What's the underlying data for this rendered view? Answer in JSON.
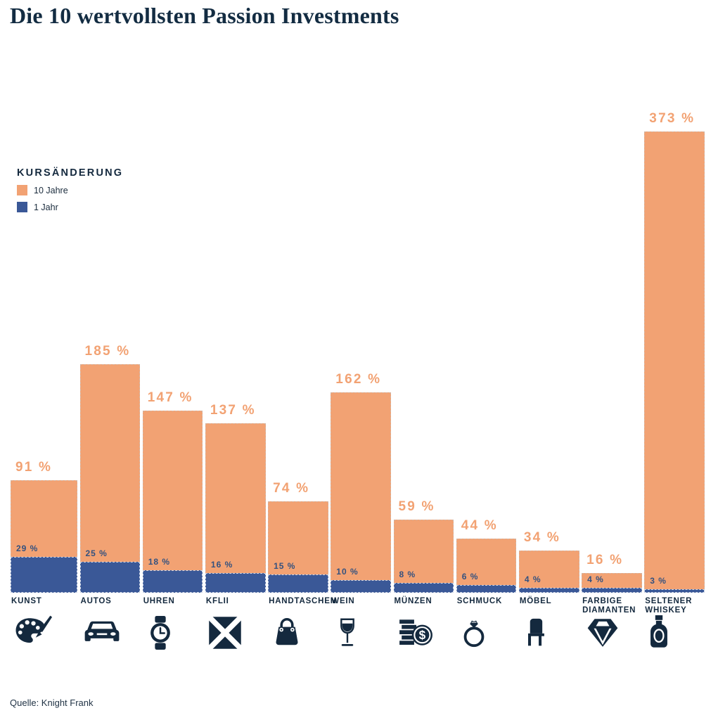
{
  "title": "Die 10 wertvollsten Passion Investments",
  "source": "Quelle: Knight Frank",
  "legend": {
    "heading": "KURSÄNDERUNG",
    "items": [
      {
        "label": "10 Jahre",
        "color": "#F2A273"
      },
      {
        "label": "1 Jahr",
        "color": "#3A5897"
      }
    ]
  },
  "chart_data": {
    "type": "bar",
    "title": "Die 10 wertvollsten Passion Investments",
    "categories": [
      "KUNST",
      "AUTOS",
      "UHREN",
      "KFLII",
      "HANDTASCHEN",
      "WEIN",
      "MÜNZEN",
      "SCHMUCK",
      "MÖBEL",
      "FARBIGE DIAMANTEN",
      "SELTENER WHISKEY"
    ],
    "series": [
      {
        "name": "10 Jahre",
        "color": "#F2A273",
        "values": [
          91,
          185,
          147,
          137,
          74,
          162,
          59,
          44,
          34,
          16,
          373
        ]
      },
      {
        "name": "1 Jahr",
        "color": "#3A5897",
        "values": [
          29,
          25,
          18,
          16,
          15,
          10,
          8,
          6,
          4,
          4,
          3
        ]
      }
    ],
    "value_suffix": " %",
    "ylim": [
      0,
      373
    ],
    "grid": false,
    "legend_position": "upper-left",
    "icons": [
      "palette",
      "car",
      "watch",
      "kflii-logo",
      "handbag",
      "wine-glass",
      "coins",
      "ring",
      "chair",
      "diamond",
      "whiskey-bottle"
    ]
  },
  "colors": {
    "navy": "#14293E",
    "orange": "#F2A273",
    "blue": "#3A5897",
    "blue_value_label": "#33517F",
    "orange_value_label": "#F2A273"
  }
}
